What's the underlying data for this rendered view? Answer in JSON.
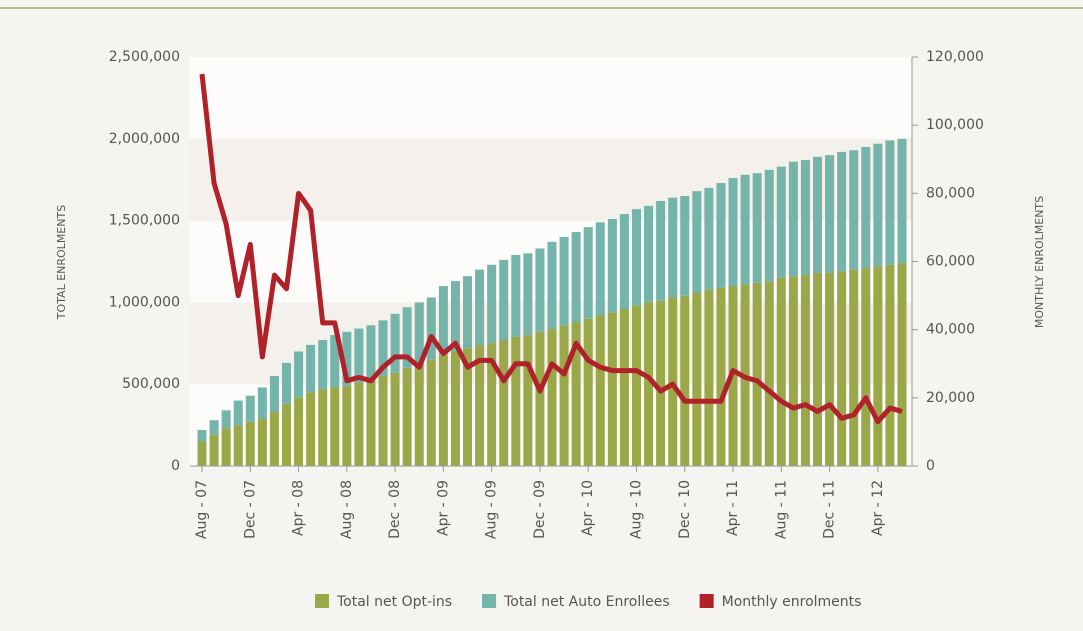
{
  "chart_data": {
    "type": "bar",
    "categories": [
      "Aug - 07",
      null,
      null,
      null,
      "Dec - 07",
      null,
      null,
      null,
      "Apr - 08",
      null,
      null,
      null,
      "Aug - 08",
      null,
      null,
      null,
      "Dec - 08",
      null,
      null,
      null,
      "Apr - 09",
      null,
      null,
      null,
      "Aug - 09",
      null,
      null,
      null,
      "Dec - 09",
      null,
      null,
      null,
      "Apr - 10",
      null,
      null,
      null,
      "Aug - 10",
      null,
      null,
      null,
      "Dec - 10",
      null,
      null,
      null,
      "Apr - 11",
      null,
      null,
      null,
      "Aug - 11",
      null,
      null,
      null,
      "Dec - 11",
      null,
      null,
      null,
      "Apr - 12",
      null,
      null
    ],
    "y_label": "TOTAL ENROLMENTS",
    "y2_label": "MONTHLY ENROLMENTS",
    "ylim": [
      0,
      2500000
    ],
    "yticks": [
      0,
      {
        "value": 500000,
        "label": "500,000"
      },
      {
        "value": 1000000,
        "label": "1,000,000"
      },
      {
        "value": 1500000,
        "label": "1,500,000"
      },
      {
        "value": 2000000,
        "label": "2,000,000"
      },
      {
        "value": 2500000,
        "label": "2,500,000"
      }
    ],
    "y2lim": [
      0,
      120000
    ],
    "y2ticks": [
      0,
      {
        "value": 20000,
        "label": "20,000"
      },
      {
        "value": 40000,
        "label": "40,000"
      },
      {
        "value": 60000,
        "label": "60,000"
      },
      {
        "value": 80000,
        "label": "80,000"
      },
      {
        "value": 100000,
        "label": "100,000"
      },
      {
        "value": 120000,
        "label": "120,000"
      }
    ],
    "stacked": true,
    "series": [
      {
        "name": "Total net Opt-ins",
        "color": "#9aa84a",
        "type": "bar",
        "values": [
          150000,
          190000,
          230000,
          250000,
          270000,
          290000,
          330000,
          380000,
          420000,
          450000,
          470000,
          480000,
          490000,
          510000,
          530000,
          550000,
          570000,
          600000,
          630000,
          650000,
          680000,
          700000,
          720000,
          740000,
          750000,
          770000,
          790000,
          800000,
          820000,
          840000,
          860000,
          880000,
          900000,
          920000,
          940000,
          960000,
          980000,
          1000000,
          1010000,
          1030000,
          1040000,
          1060000,
          1080000,
          1090000,
          1100000,
          1110000,
          1120000,
          1130000,
          1150000,
          1160000,
          1170000,
          1180000,
          1180000,
          1190000,
          1200000,
          1210000,
          1220000,
          1230000,
          1240000
        ]
      },
      {
        "name": "Total net Auto Enrollees",
        "color": "#74b4aa",
        "type": "bar",
        "values": [
          70000,
          90000,
          110000,
          150000,
          160000,
          190000,
          220000,
          250000,
          280000,
          290000,
          300000,
          320000,
          330000,
          330000,
          330000,
          340000,
          360000,
          370000,
          370000,
          380000,
          420000,
          430000,
          440000,
          460000,
          480000,
          490000,
          500000,
          500000,
          510000,
          530000,
          540000,
          550000,
          560000,
          570000,
          570000,
          580000,
          590000,
          590000,
          610000,
          610000,
          610000,
          620000,
          620000,
          640000,
          660000,
          670000,
          670000,
          680000,
          680000,
          700000,
          700000,
          710000,
          720000,
          730000,
          730000,
          740000,
          750000,
          760000,
          760000
        ]
      },
      {
        "name": "Monthly enrolments",
        "color": "#b0222a",
        "type": "line",
        "axis": "y2",
        "values": [
          115000,
          83000,
          71000,
          50000,
          65000,
          32000,
          56000,
          52000,
          80000,
          75000,
          42000,
          42000,
          25000,
          26000,
          25000,
          29000,
          32000,
          32000,
          29000,
          38000,
          33000,
          36000,
          29000,
          31000,
          31000,
          25000,
          30000,
          30000,
          22000,
          30000,
          27000,
          36000,
          31000,
          29000,
          28000,
          28000,
          28000,
          26000,
          22000,
          24000,
          19000,
          19000,
          19000,
          19000,
          28000,
          26000,
          25000,
          22000,
          19000,
          17000,
          18000,
          16000,
          18000,
          14000,
          15000,
          20000,
          13000,
          17000,
          16000
        ]
      }
    ]
  }
}
